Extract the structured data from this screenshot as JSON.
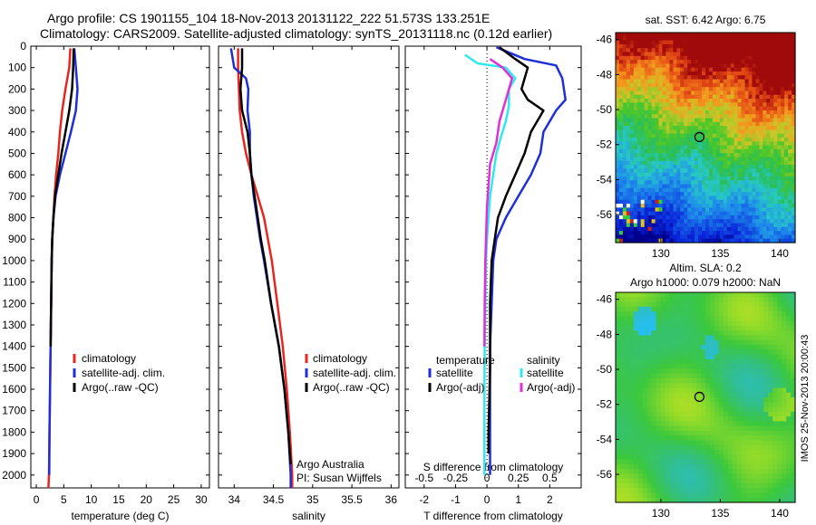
{
  "header": {
    "line1": "Argo profile: CS 1901155_104 18-Nov-2013 20131122_222 51.573S 133.251E",
    "line2": "Climatology: CARS2009. Satellite-adjusted climatology: synTS_20131118.nc (0.12d earlier)"
  },
  "colors": {
    "climatology": "#e8261f",
    "satellite": "#1f2fd8",
    "argo": "#000000",
    "sal_sat": "#2fe8f0",
    "sal_argo": "#e02fd8"
  },
  "chart_data": [
    {
      "id": "temperature",
      "type": "line",
      "xlabel": "temperature (deg C)",
      "ylabel": "",
      "xlim": [
        -1,
        31.5
      ],
      "ylim": [
        2060,
        0
      ],
      "xticks": [
        0,
        5,
        10,
        15,
        20,
        25,
        30
      ],
      "yticks": [
        0,
        100,
        200,
        300,
        400,
        500,
        600,
        700,
        800,
        900,
        1000,
        1100,
        1200,
        1300,
        1400,
        1500,
        1600,
        1700,
        1800,
        1900,
        2000
      ],
      "legend": [
        "climatology",
        "satellite-adj. clim.",
        "Argo(..raw -QC)"
      ],
      "series": [
        {
          "name": "climatology",
          "color": "#e8261f",
          "points": [
            [
              6.2,
              10
            ],
            [
              6.0,
              100
            ],
            [
              5.3,
              200
            ],
            [
              4.7,
              300
            ],
            [
              4.3,
              400
            ],
            [
              4.0,
              500
            ],
            [
              3.6,
              600
            ],
            [
              3.3,
              700
            ],
            [
              3.1,
              800
            ],
            [
              2.9,
              900
            ],
            [
              2.8,
              1000
            ],
            [
              2.7,
              1200
            ],
            [
              2.6,
              1400
            ],
            [
              2.5,
              1600
            ],
            [
              2.4,
              1800
            ],
            [
              2.3,
              2000
            ],
            [
              2.2,
              2060
            ]
          ]
        },
        {
          "name": "satellite-adj. clim.",
          "color": "#1f2fd8",
          "points": [
            [
              6.9,
              10
            ],
            [
              7.2,
              100
            ],
            [
              7.5,
              200
            ],
            [
              7.2,
              300
            ],
            [
              6.3,
              400
            ],
            [
              5.3,
              500
            ],
            [
              4.3,
              600
            ],
            [
              3.5,
              700
            ],
            [
              3.1,
              800
            ],
            [
              2.9,
              900
            ],
            [
              2.8,
              1000
            ],
            [
              2.7,
              1200
            ],
            [
              2.6,
              1400
            ],
            [
              2.5,
              1600
            ],
            [
              2.4,
              1800
            ],
            [
              2.35,
              2000
            ]
          ]
        },
        {
          "name": "Argo(..raw -QC)",
          "color": "#000000",
          "points": [
            [
              6.8,
              10
            ],
            [
              6.7,
              100
            ],
            [
              6.5,
              200
            ],
            [
              6.0,
              300
            ],
            [
              5.3,
              400
            ],
            [
              4.6,
              500
            ],
            [
              4.0,
              600
            ],
            [
              3.4,
              700
            ],
            [
              3.1,
              800
            ],
            [
              2.9,
              900
            ],
            [
              2.8,
              1000
            ],
            [
              2.7,
              1200
            ],
            [
              2.6,
              1400
            ]
          ]
        }
      ]
    },
    {
      "id": "salinity",
      "type": "line",
      "xlabel": "salinity",
      "ylabel": "",
      "xlim": [
        33.8,
        36.1
      ],
      "ylim": [
        2060,
        0
      ],
      "xticks": [
        34,
        34.5,
        35,
        35.5,
        36
      ],
      "legend": [
        "climatology",
        "satellite-adj. clim.",
        "Argo(..raw -QC)"
      ],
      "annotation": [
        "Argo Australia",
        "PI: Susan Wijffels"
      ],
      "series": [
        {
          "name": "climatology",
          "color": "#e8261f",
          "points": [
            [
              34.05,
              10
            ],
            [
              34.05,
              100
            ],
            [
              34.06,
              200
            ],
            [
              34.07,
              300
            ],
            [
              34.1,
              400
            ],
            [
              34.15,
              500
            ],
            [
              34.22,
              600
            ],
            [
              34.3,
              700
            ],
            [
              34.38,
              800
            ],
            [
              34.43,
              900
            ],
            [
              34.48,
              1000
            ],
            [
              34.55,
              1200
            ],
            [
              34.62,
              1400
            ],
            [
              34.67,
              1600
            ],
            [
              34.71,
              1800
            ],
            [
              34.74,
              2000
            ],
            [
              34.74,
              2060
            ]
          ]
        },
        {
          "name": "satellite-adj. clim.",
          "color": "#1f2fd8",
          "points": [
            [
              33.96,
              10
            ],
            [
              34.0,
              100
            ],
            [
              34.15,
              150
            ],
            [
              34.18,
              200
            ],
            [
              34.17,
              300
            ],
            [
              34.2,
              400
            ],
            [
              34.2,
              500
            ],
            [
              34.22,
              600
            ],
            [
              34.25,
              700
            ],
            [
              34.29,
              800
            ],
            [
              34.33,
              900
            ],
            [
              34.38,
              1000
            ],
            [
              34.47,
              1200
            ],
            [
              34.57,
              1400
            ],
            [
              34.64,
              1600
            ],
            [
              34.69,
              1800
            ],
            [
              34.72,
              2000
            ],
            [
              34.72,
              2060
            ]
          ]
        },
        {
          "name": "Argo(..raw -QC)",
          "color": "#000000",
          "points": [
            [
              34.1,
              10
            ],
            [
              34.1,
              100
            ],
            [
              34.08,
              200
            ],
            [
              34.1,
              300
            ],
            [
              34.17,
              400
            ],
            [
              34.2,
              500
            ],
            [
              34.22,
              600
            ],
            [
              34.26,
              700
            ],
            [
              34.3,
              800
            ],
            [
              34.34,
              900
            ],
            [
              34.39,
              1000
            ],
            [
              34.47,
              1200
            ],
            [
              34.57,
              1400
            ],
            [
              34.64,
              1600
            ],
            [
              34.69,
              1800
            ],
            [
              34.72,
              1950
            ]
          ]
        }
      ]
    },
    {
      "id": "differences",
      "type": "line",
      "xlabel": "T difference from climatology",
      "xlabel2": "S difference from climatology",
      "xlim": [
        -2.6,
        3.0
      ],
      "ylim": [
        2060,
        0
      ],
      "xticks": [
        -2,
        -1,
        0,
        1,
        2
      ],
      "xticks_top": [
        "-0.5",
        "-0.25",
        "0",
        "0.25",
        "0.5"
      ],
      "legend_headers": [
        "temperature",
        "salinity"
      ],
      "legend_t": [
        "satellite",
        "Argo(-adj)"
      ],
      "legend_s": [
        "satellite",
        "Argo(-adj)"
      ],
      "series": [
        {
          "name": "T satellite",
          "color": "#1f2fd8",
          "points": [
            [
              0.3,
              5
            ],
            [
              1.2,
              60
            ],
            [
              2.2,
              90
            ],
            [
              2.4,
              150
            ],
            [
              2.5,
              250
            ],
            [
              2.2,
              300
            ],
            [
              1.8,
              400
            ],
            [
              1.7,
              500
            ],
            [
              1.4,
              600
            ],
            [
              1.0,
              700
            ],
            [
              0.6,
              800
            ],
            [
              0.3,
              900
            ],
            [
              0.2,
              1000
            ],
            [
              0.15,
              1200
            ],
            [
              0.1,
              1400
            ],
            [
              0.1,
              1600
            ],
            [
              0.1,
              1800
            ],
            [
              0.1,
              2000
            ]
          ]
        },
        {
          "name": "T Argo(-adj)",
          "color": "#000000",
          "points": [
            [
              0.4,
              5
            ],
            [
              0.9,
              60
            ],
            [
              1.3,
              100
            ],
            [
              1.1,
              200
            ],
            [
              1.3,
              250
            ],
            [
              1.8,
              300
            ],
            [
              1.4,
              400
            ],
            [
              1.2,
              500
            ],
            [
              0.9,
              600
            ],
            [
              0.6,
              700
            ],
            [
              0.35,
              800
            ],
            [
              0.25,
              900
            ],
            [
              0.15,
              1000
            ],
            [
              0.1,
              1200
            ],
            [
              0.1,
              1500
            ],
            [
              0.05,
              1800
            ],
            [
              0.05,
              1900
            ]
          ]
        },
        {
          "name": "S satellite",
          "color": "#2fe8f0",
          "points": [
            [
              -0.7,
              40
            ],
            [
              -0.3,
              80
            ],
            [
              0.6,
              100
            ],
            [
              0.9,
              150
            ],
            [
              0.7,
              200
            ],
            [
              0.7,
              280
            ],
            [
              0.6,
              350
            ],
            [
              0.45,
              420
            ],
            [
              0.3,
              500
            ],
            [
              0.2,
              600
            ],
            [
              0.1,
              700
            ],
            [
              0.05,
              800
            ],
            [
              0.0,
              900
            ],
            [
              -0.03,
              1000
            ],
            [
              -0.05,
              1200
            ],
            [
              -0.07,
              1400
            ],
            [
              -0.08,
              1600
            ],
            [
              -0.08,
              1800
            ],
            [
              -0.08,
              2000
            ]
          ]
        },
        {
          "name": "S Argo(-adj)",
          "color": "#e02fd8",
          "points": [
            [
              0.1,
              60
            ],
            [
              0.5,
              100
            ],
            [
              0.8,
              150
            ],
            [
              0.6,
              250
            ],
            [
              0.4,
              350
            ],
            [
              0.3,
              450
            ],
            [
              0.1,
              550
            ],
            [
              0.05,
              650
            ],
            [
              0.0,
              750
            ],
            [
              -0.02,
              850
            ],
            [
              -0.05,
              1000
            ],
            [
              -0.07,
              1200
            ],
            [
              -0.08,
              1400
            ]
          ]
        }
      ]
    },
    {
      "id": "sst-map",
      "type": "heatmap",
      "title": "sat. SST: 6.42 Argo: 6.75",
      "xticks": [
        130,
        135,
        140
      ],
      "yticks": [
        -46,
        -48,
        -50,
        -52,
        -54,
        -56
      ],
      "xlim": [
        126.2,
        141.3
      ],
      "ylim": [
        -57.6,
        -45.6
      ],
      "marker": [
        133.25,
        -51.57
      ]
    },
    {
      "id": "sla-map",
      "type": "heatmap",
      "title": "Altim. SLA: 0.2",
      "subtitle": "Argo h1000: 0.079 h2000: NaN",
      "xticks": [
        130,
        135,
        140
      ],
      "yticks": [
        -46,
        -48,
        -50,
        -52,
        -54,
        -56
      ],
      "xlim": [
        126.2,
        141.3
      ],
      "ylim": [
        -57.6,
        -45.6
      ],
      "marker": [
        133.25,
        -51.57
      ],
      "side_label": "IMOS 25-Nov-2013 20:00:43"
    }
  ]
}
